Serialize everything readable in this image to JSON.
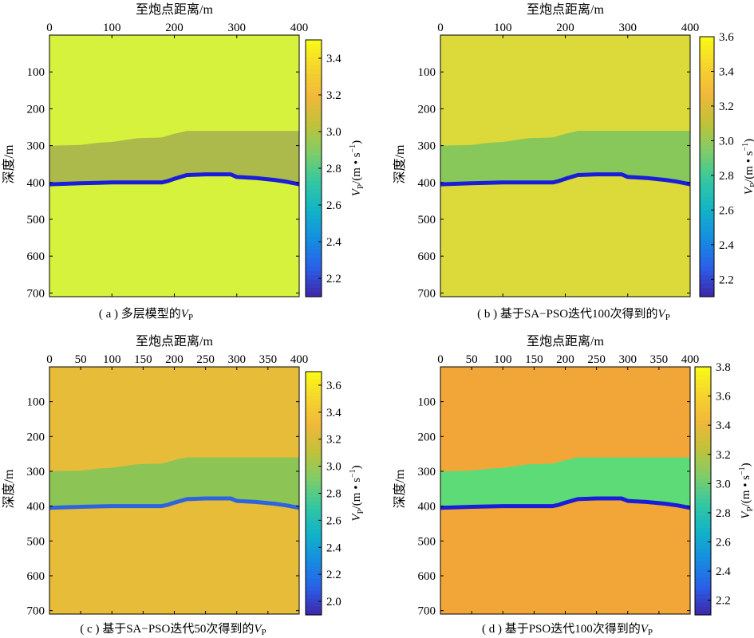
{
  "figure": {
    "colormap": [
      "#3e26a8",
      "#2a5fe8",
      "#168de0",
      "#12b2c8",
      "#33c7a2",
      "#7ccd6a",
      "#bfc23a",
      "#f0b83a",
      "#f6d42e",
      "#f9fb15"
    ],
    "panels": [
      {
        "id": "a",
        "caption": "( a ) 多层模型的",
        "caption_var": "V",
        "caption_sub": "P",
        "x_axis_label": "至炮点距离/m",
        "y_axis_label": "深度/m",
        "cbar_label_prefix": "V",
        "cbar_label_sub": "P",
        "cbar_label_suffix": "/(m • s",
        "cbar_label_sup": "−1",
        "cbar_label_end": ")"
      },
      {
        "id": "b",
        "caption": "( b ) 基于SA−PSO迭代100次得到的",
        "caption_var": "V",
        "caption_sub": "P",
        "x_axis_label": "至炮点距离/m",
        "y_axis_label": "深度/m",
        "cbar_label_prefix": "V",
        "cbar_label_sub": "P",
        "cbar_label_suffix": "/(m • s",
        "cbar_label_sup": "−1",
        "cbar_label_end": ")"
      },
      {
        "id": "c",
        "caption": "( c ) 基于SA−PSO迭代50次得到的",
        "caption_var": "V",
        "caption_sub": "P",
        "x_axis_label": "至炮点距离/m",
        "y_axis_label": "深度/m",
        "cbar_label_prefix": "V",
        "cbar_label_sub": "P",
        "cbar_label_suffix": "/(m • s",
        "cbar_label_sup": "−1",
        "cbar_label_end": ")"
      },
      {
        "id": "d",
        "caption": "( d ) 基于PSO迭代100次得到的",
        "caption_var": "V",
        "caption_sub": "P",
        "x_axis_label": "至炮点距离/m",
        "y_axis_label": "深度/m",
        "cbar_label_prefix": "V",
        "cbar_label_sub": "P",
        "cbar_label_suffix": "/(m • s",
        "cbar_label_sup": "−1",
        "cbar_label_end": ")"
      }
    ]
  },
  "chart_data": [
    {
      "type": "heatmap",
      "xlabel": "至炮点距离/m",
      "ylabel": "深度/m",
      "xlim": [
        0,
        400
      ],
      "ylim": [
        0,
        710
      ],
      "y_reversed": true,
      "x_ticks": [
        0,
        100,
        200,
        300,
        400
      ],
      "y_ticks": [
        100,
        200,
        300,
        400,
        500,
        600,
        700
      ],
      "colorbar": {
        "range": [
          2.1,
          3.5
        ],
        "ticks": [
          2.2,
          2.4,
          2.6,
          2.8,
          3.0,
          3.2,
          3.4
        ]
      },
      "layers": [
        {
          "name": "top",
          "value": 3.5,
          "color": "#d6f23c"
        },
        {
          "name": "middle",
          "value": 3.05,
          "color": "#acb94b"
        },
        {
          "name": "interface",
          "value": 2.1,
          "color": "#1a1ed8"
        }
      ],
      "upper_boundary": {
        "x": [
          0,
          50,
          80,
          100,
          140,
          180,
          200,
          220,
          300,
          400
        ],
        "depth": [
          300,
          298,
          292,
          290,
          280,
          278,
          268,
          260,
          260,
          260
        ]
      },
      "lower_boundary": {
        "x": [
          0,
          50,
          100,
          150,
          180,
          190,
          200,
          220,
          250,
          290,
          300,
          330,
          360,
          380,
          400
        ],
        "depth": [
          405,
          402,
          400,
          400,
          400,
          396,
          390,
          380,
          378,
          378,
          385,
          388,
          393,
          398,
          405
        ]
      }
    },
    {
      "type": "heatmap",
      "xlabel": "至炮点距离/m",
      "ylabel": "深度/m",
      "xlim": [
        0,
        400
      ],
      "ylim": [
        0,
        710
      ],
      "y_reversed": true,
      "x_ticks": [
        0,
        100,
        200,
        300,
        400
      ],
      "y_ticks": [
        100,
        200,
        300,
        400,
        500,
        600,
        700
      ],
      "colorbar": {
        "range": [
          2.1,
          3.6
        ],
        "ticks": [
          2.2,
          2.4,
          2.6,
          2.8,
          3.0,
          3.2,
          3.4,
          3.6
        ]
      },
      "layers": [
        {
          "name": "top",
          "value": 3.55,
          "color": "#dcd93a"
        },
        {
          "name": "middle",
          "value": 3.0,
          "color": "#88c85a"
        },
        {
          "name": "interface",
          "value": 2.1,
          "color": "#1a1ed8"
        }
      ],
      "upper_boundary": {
        "x": [
          0,
          50,
          80,
          100,
          140,
          180,
          200,
          220,
          300,
          400
        ],
        "depth": [
          300,
          298,
          292,
          290,
          280,
          278,
          268,
          260,
          260,
          260
        ]
      },
      "lower_boundary": {
        "x": [
          0,
          50,
          100,
          150,
          180,
          190,
          200,
          220,
          250,
          290,
          300,
          330,
          360,
          380,
          400
        ],
        "depth": [
          405,
          402,
          400,
          400,
          400,
          396,
          390,
          380,
          378,
          378,
          385,
          388,
          393,
          398,
          405
        ]
      }
    },
    {
      "type": "heatmap",
      "xlabel": "至炮点距离/m",
      "ylabel": "深度/m",
      "xlim": [
        0,
        400
      ],
      "ylim": [
        0,
        710
      ],
      "y_reversed": true,
      "x_ticks": [
        0,
        50,
        100,
        150,
        200,
        250,
        300,
        350,
        400
      ],
      "y_ticks": [
        100,
        200,
        300,
        400,
        500,
        600,
        700
      ],
      "colorbar": {
        "range": [
          1.9,
          3.7
        ],
        "ticks": [
          2.0,
          2.2,
          2.4,
          2.6,
          2.8,
          3.0,
          3.2,
          3.4,
          3.6
        ]
      },
      "layers": [
        {
          "name": "top",
          "value": 3.45,
          "color": "#e6bc38"
        },
        {
          "name": "middle",
          "value": 3.05,
          "color": "#8cc455"
        },
        {
          "name": "interface",
          "value": 2.3,
          "color": "#2e63e0"
        }
      ],
      "upper_boundary": {
        "x": [
          0,
          50,
          80,
          100,
          140,
          180,
          200,
          220,
          300,
          400
        ],
        "depth": [
          300,
          298,
          292,
          290,
          280,
          278,
          268,
          260,
          260,
          260
        ]
      },
      "lower_boundary": {
        "x": [
          0,
          50,
          100,
          150,
          180,
          190,
          200,
          220,
          250,
          290,
          300,
          330,
          360,
          380,
          400
        ],
        "depth": [
          405,
          402,
          400,
          400,
          400,
          396,
          390,
          380,
          378,
          378,
          385,
          388,
          393,
          398,
          405
        ]
      }
    },
    {
      "type": "heatmap",
      "xlabel": "至炮点距离/m",
      "ylabel": "深度/m",
      "xlim": [
        0,
        400
      ],
      "ylim": [
        0,
        710
      ],
      "y_reversed": true,
      "x_ticks": [
        0,
        50,
        100,
        150,
        200,
        250,
        300,
        350,
        400
      ],
      "y_ticks": [
        100,
        200,
        300,
        400,
        500,
        600,
        700
      ],
      "colorbar": {
        "range": [
          2.1,
          3.8
        ],
        "ticks": [
          2.2,
          2.4,
          2.6,
          2.8,
          3.0,
          3.2,
          3.4,
          3.6,
          3.8
        ]
      },
      "layers": [
        {
          "name": "top",
          "value": 3.5,
          "color": "#f2a638"
        },
        {
          "name": "middle",
          "value": 2.95,
          "color": "#5ddb77"
        },
        {
          "name": "interface",
          "value": 2.1,
          "color": "#1a1ed8"
        }
      ],
      "upper_boundary": {
        "x": [
          0,
          50,
          80,
          100,
          140,
          180,
          200,
          220,
          300,
          400
        ],
        "depth": [
          300,
          298,
          292,
          290,
          280,
          278,
          268,
          260,
          260,
          260
        ]
      },
      "lower_boundary": {
        "x": [
          0,
          50,
          100,
          150,
          180,
          190,
          200,
          220,
          250,
          290,
          300,
          330,
          360,
          380,
          400
        ],
        "depth": [
          405,
          402,
          400,
          400,
          400,
          396,
          390,
          380,
          378,
          378,
          385,
          388,
          393,
          398,
          405
        ]
      }
    }
  ]
}
